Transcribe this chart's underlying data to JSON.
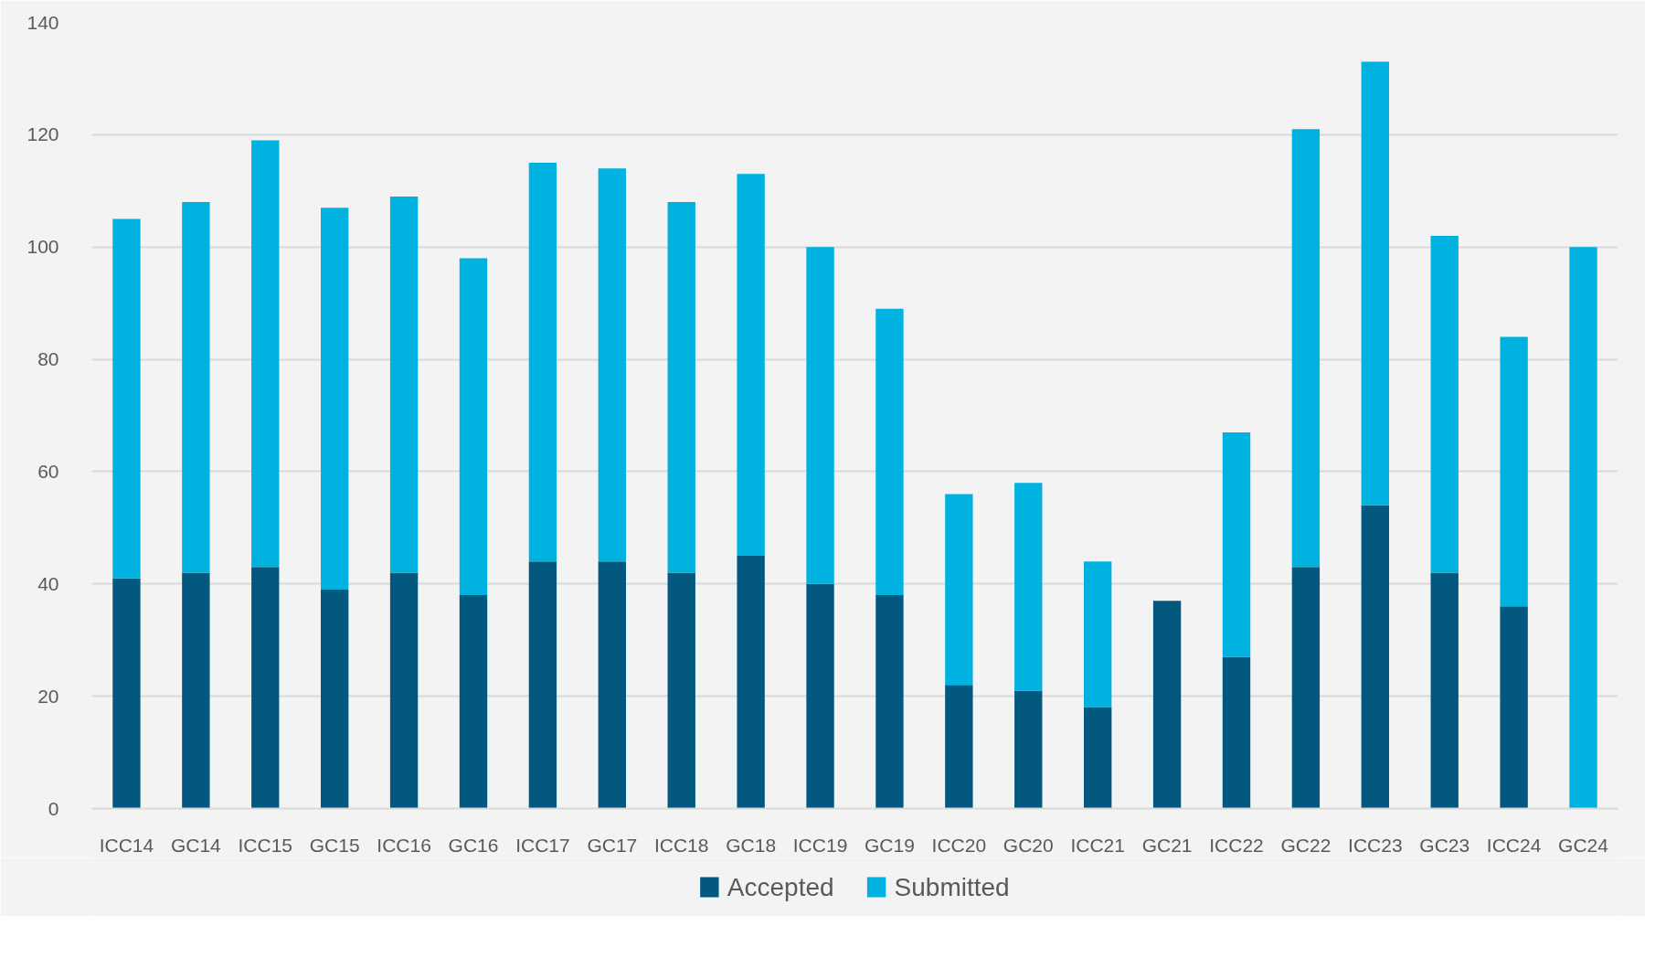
{
  "chart_data": {
    "type": "bar",
    "stacked": true,
    "categories": [
      "ICC14",
      "GC14",
      "ICC15",
      "GC15",
      "ICC16",
      "GC16",
      "ICC17",
      "GC17",
      "ICC18",
      "GC18",
      "ICC19",
      "GC19",
      "ICC20",
      "GC20",
      "ICC21",
      "GC21",
      "ICC22",
      "GC22",
      "ICC23",
      "GC23",
      "ICC24",
      "GC24"
    ],
    "series": [
      {
        "name": "Accepted",
        "color": "#02587f",
        "values": [
          41,
          42,
          43,
          39,
          42,
          38,
          44,
          44,
          42,
          45,
          40,
          38,
          22,
          21,
          18,
          37,
          27,
          43,
          54,
          42,
          36,
          null
        ]
      },
      {
        "name": "Submitted",
        "color": "#00b2e0",
        "values": [
          64,
          66,
          76,
          68,
          67,
          60,
          71,
          70,
          66,
          68,
          60,
          51,
          34,
          37,
          26,
          null,
          40,
          78,
          79,
          60,
          48,
          100
        ]
      }
    ],
    "ylim": [
      0,
      140
    ],
    "yticks": [
      0,
      20,
      40,
      60,
      80,
      100,
      120,
      140
    ],
    "grid": "y",
    "legend": "bottom"
  }
}
